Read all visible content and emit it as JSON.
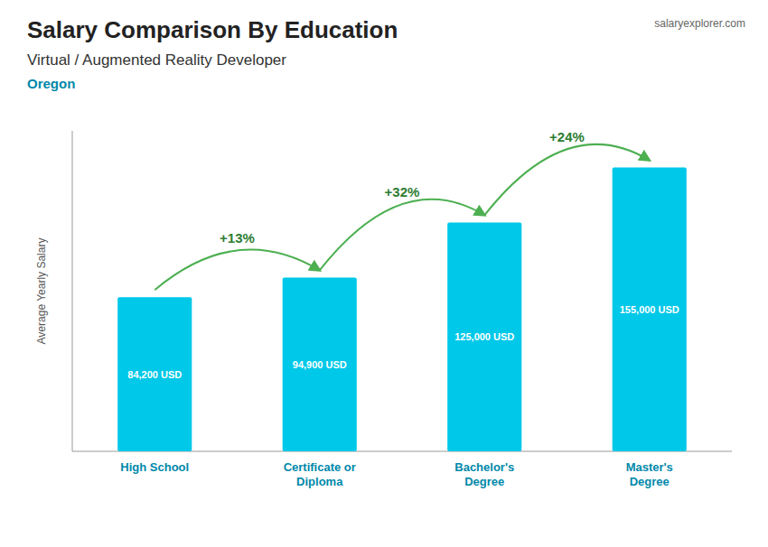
{
  "chart_data": {
    "type": "bar",
    "title": "Salary Comparison By Education",
    "subtitle": "Virtual / Augmented Reality Developer",
    "location": "Oregon",
    "source": "salaryexplorer.com",
    "ylabel": "Average Yearly Salary",
    "categories": [
      "High School",
      "Certificate or\nDiploma",
      "Bachelor's\nDegree",
      "Master's\nDegree"
    ],
    "values": [
      84200,
      94900,
      125000,
      155000
    ],
    "value_labels": [
      "84,200 USD",
      "94,900 USD",
      "125,000 USD",
      "155,000 USD"
    ],
    "annotations": [
      "+13%",
      "+32%",
      "+24%"
    ],
    "data_labels": true,
    "color": "#00c8e8",
    "ylim": [
      0,
      175000
    ],
    "tick_labels": "x",
    "grid": false
  }
}
